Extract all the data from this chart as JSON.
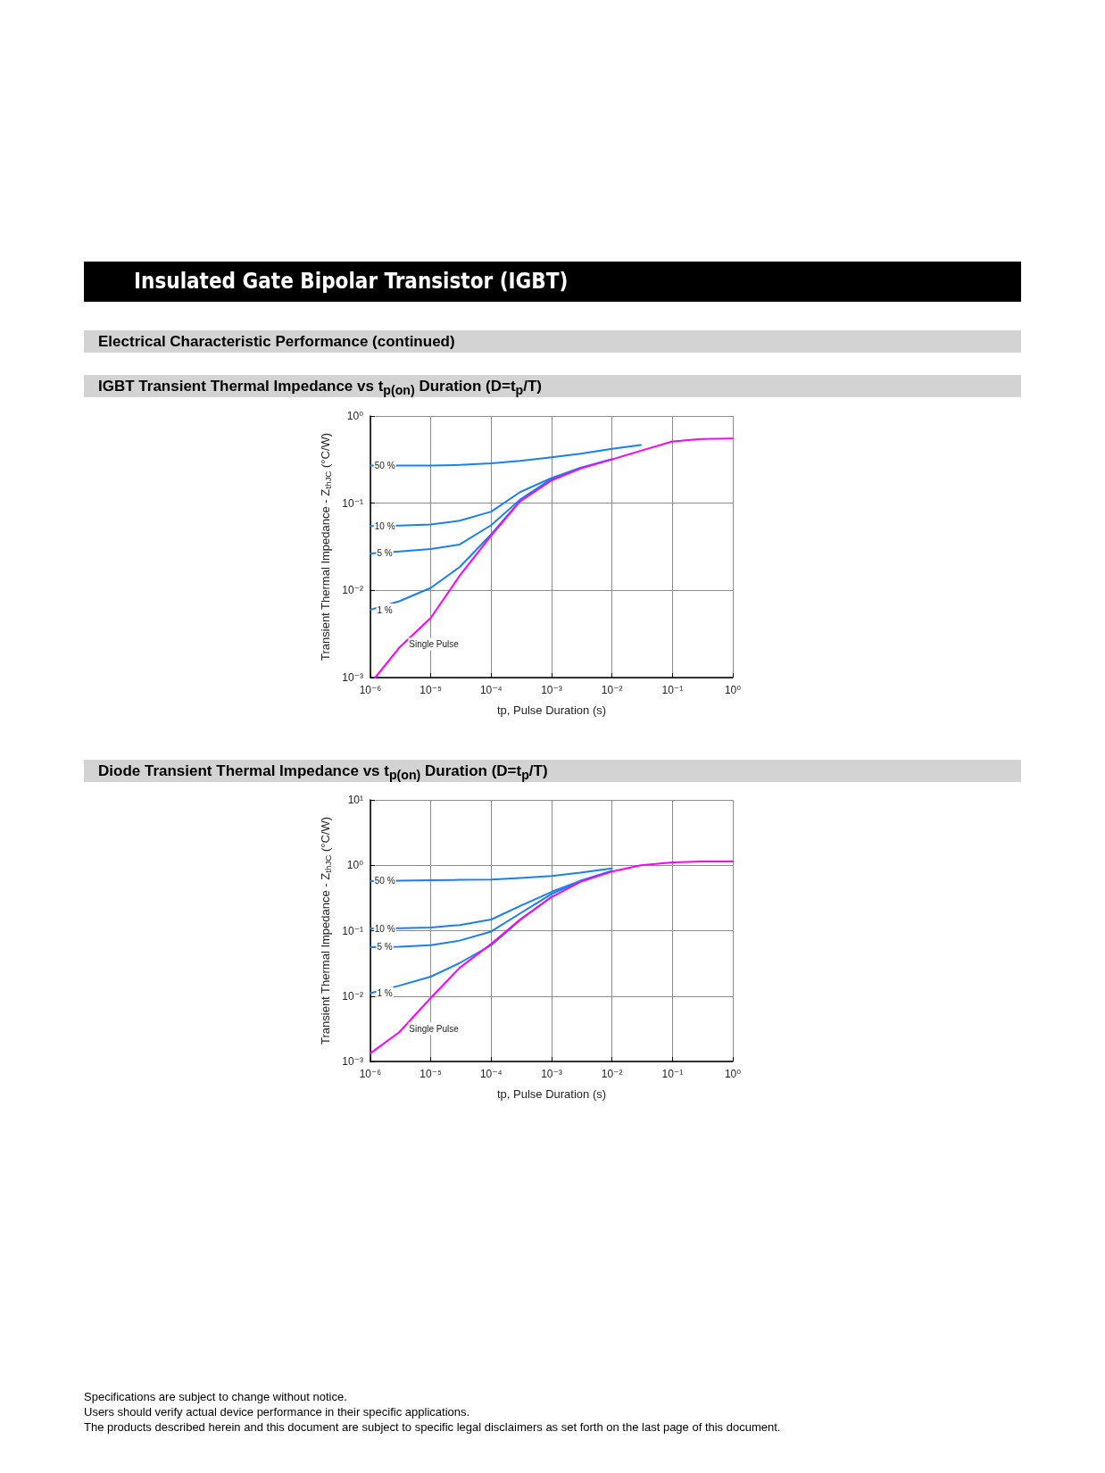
{
  "chart_data": [
    {
      "type": "line",
      "title": "IGBT Transient Thermal Impedance vs t$_{p(on)}$ Duration (D=t$_{p}$/T)",
      "xlabel": "tp, Pulse Duration (s)",
      "ylabel": "Transient Thermal Impedance - Z$_{thJC}$ (°C/W)",
      "annotations": [
        "Insulated Gate Bipolar Transistor (IGBT)",
        "Electrical Characteristic Performance (continued)"
      ],
      "x": [
        1.2e-06,
        3e-06,
        1e-05,
        3e-05,
        0.0001,
        0.0003,
        0.001,
        0.003,
        0.01,
        0.03,
        0.1,
        0.3,
        1
      ],
      "series": [
        {
          "name": "50 %",
          "color": "#1a7ff0",
          "x": [
            1e-06,
            3e-06,
            1e-05,
            3e-05,
            0.0001,
            0.0003,
            0.001,
            0.003,
            0.01,
            0.03
          ],
          "values": [
            0.27,
            0.27,
            0.27,
            0.275,
            0.287,
            0.305,
            0.336,
            0.37,
            0.42,
            0.465
          ]
        },
        {
          "name": "10 %",
          "color": "#1a7ff0",
          "x": [
            1e-06,
            3e-06,
            1e-05,
            3e-05,
            0.0001,
            0.0003,
            0.001,
            0.003,
            0.01
          ],
          "values": [
            0.0548,
            0.0555,
            0.057,
            0.063,
            0.08,
            0.134,
            0.195,
            0.255,
            0.32
          ]
        },
        {
          "name": "5 %",
          "color": "#1a7ff0",
          "x": [
            1e-06,
            3e-06,
            1e-05,
            3e-05,
            0.0001,
            0.0003,
            0.001,
            0.003
          ],
          "values": [
            0.0265,
            0.028,
            0.0298,
            0.0336,
            0.056,
            0.11,
            0.19,
            0.252
          ]
        },
        {
          "name": "1 %",
          "color": "#1a7ff0",
          "x": [
            1e-06,
            3e-06,
            1e-05,
            3e-05,
            0.0001,
            0.0003,
            0.001
          ],
          "values": [
            0.006,
            0.0075,
            0.0107,
            0.0185,
            0.044,
            0.106,
            0.185
          ]
        },
        {
          "name": "Single Pulse",
          "color": "#ff00ff",
          "values": [
            0.001,
            0.0022,
            0.00485,
            0.0147,
            0.0425,
            0.105,
            0.183,
            0.25,
            0.318,
            0.4,
            0.51,
            0.545,
            0.553
          ]
        }
      ],
      "log": "xy",
      "xlim": [
        1e-06,
        1
      ],
      "ylim": [
        0.001,
        1
      ],
      "xticks": [
        {
          "value": 1e-06,
          "label": "10⁻⁶"
        },
        {
          "value": 1e-05,
          "label": "10⁻⁵"
        },
        {
          "value": 0.0001,
          "label": "10⁻⁴"
        },
        {
          "value": 0.001,
          "label": "10⁻³"
        },
        {
          "value": 0.01,
          "label": "10⁻²"
        },
        {
          "value": 0.1,
          "label": "10⁻¹"
        },
        {
          "value": 1,
          "label": "10⁰"
        }
      ],
      "yticks": [
        {
          "value": 0.001,
          "label": "10⁻³"
        },
        {
          "value": 0.01,
          "label": "10⁻²"
        },
        {
          "value": 0.1,
          "label": "10⁻¹"
        },
        {
          "value": 1,
          "label": "10⁰"
        }
      ],
      "grid": true,
      "marker": "none",
      "line_style": "solid"
    },
    {
      "type": "line",
      "title": "Diode Transient Thermal Impedance vs t$_{p(on)}$ Duration (D=t$_{p}$/T)",
      "xlabel": "tp, Pulse Duration (s)",
      "ylabel": "Transient Thermal Impedance - Z$_{thJC}$ (°C/W)",
      "annotations": [
        "Specifications are subject to change without notice.",
        "Users should verify actual device performance in their specific applications.",
        "The products described herein and this document are subject to specific legal disclaimers as set forth on the last page of this document."
      ],
      "x": [
        1e-06,
        3e-06,
        1e-05,
        3e-05,
        0.0001,
        0.0003,
        0.001,
        0.003,
        0.01,
        0.03,
        0.1,
        0.3,
        1
      ],
      "series": [
        {
          "name": "50 %",
          "color": "#1a7ff0",
          "values": [
            0.574,
            0.58,
            0.59,
            0.598,
            0.605,
            0.64,
            0.687,
            0.77,
            0.895,
            null,
            null,
            null,
            null
          ]
        },
        {
          "name": "10 %",
          "color": "#1a7ff0",
          "values": [
            0.108,
            0.109,
            0.112,
            0.122,
            0.148,
            0.238,
            0.392,
            0.58,
            0.82,
            null,
            null,
            null,
            null
          ]
        },
        {
          "name": "5 %",
          "color": "#1a7ff0",
          "values": [
            0.056,
            0.057,
            0.06,
            0.0705,
            0.097,
            0.183,
            0.364,
            0.565,
            0.81,
            null,
            null,
            null,
            null
          ]
        },
        {
          "name": "1 %",
          "color": "#1a7ff0",
          "values": [
            0.0111,
            0.0144,
            0.0198,
            0.032,
            0.06,
            0.145,
            0.33,
            null,
            null,
            null,
            null,
            null,
            null
          ]
        },
        {
          "name": "Single Pulse",
          "color": "#ff00ff",
          "values": [
            0.00133,
            0.0028,
            0.0094,
            0.027,
            0.063,
            0.148,
            0.327,
            0.556,
            0.805,
            1.0,
            1.11,
            1.14,
            1.14
          ]
        }
      ],
      "log": "xy",
      "xlim": [
        1e-06,
        1
      ],
      "ylim": [
        0.001,
        10
      ],
      "xticks": [
        {
          "value": 1e-06,
          "label": "10⁻⁶"
        },
        {
          "value": 1e-05,
          "label": "10⁻⁵"
        },
        {
          "value": 0.0001,
          "label": "10⁻⁴"
        },
        {
          "value": 0.001,
          "label": "10⁻³"
        },
        {
          "value": 0.01,
          "label": "10⁻²"
        },
        {
          "value": 0.1,
          "label": "10⁻¹"
        },
        {
          "value": 1,
          "label": "10⁰"
        }
      ],
      "yticks": [
        {
          "value": 0.001,
          "label": "10⁻³"
        },
        {
          "value": 0.01,
          "label": "10⁻²"
        },
        {
          "value": 0.1,
          "label": "10⁻¹"
        },
        {
          "value": 1,
          "label": "10⁰"
        },
        {
          "value": 10,
          "label": "10¹"
        }
      ],
      "grid": true,
      "marker": "none",
      "line_style": "solid"
    }
  ]
}
